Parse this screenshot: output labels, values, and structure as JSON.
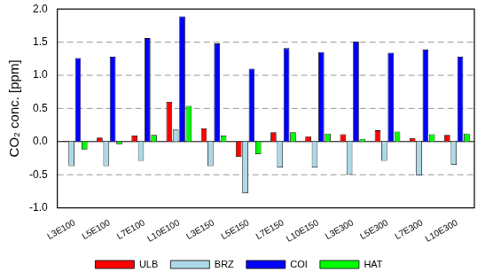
{
  "chart_data": {
    "type": "bar",
    "y_label": "CO₂ conc. [ppm]",
    "categories": [
      "L3E100",
      "L5E100",
      "L7E100",
      "L10E100",
      "L3E150",
      "L5E150",
      "L7E150",
      "L10E150",
      "L3E300",
      "L5E300",
      "L7E300",
      "L10E300"
    ],
    "series": [
      {
        "name": "ULB",
        "color": "#ff0000",
        "values": [
          0.01,
          0.06,
          0.09,
          0.6,
          0.2,
          -0.23,
          0.14,
          0.08,
          0.11,
          0.17,
          0.05,
          0.1
        ]
      },
      {
        "name": "BRZ",
        "color": "#add8e6",
        "values": [
          -0.37,
          -0.37,
          -0.29,
          0.18,
          -0.37,
          -0.78,
          -0.39,
          -0.39,
          -0.5,
          -0.29,
          -0.51,
          -0.35
        ]
      },
      {
        "name": "COI",
        "color": "#0000ff",
        "values": [
          1.26,
          1.28,
          1.56,
          1.89,
          1.48,
          1.1,
          1.41,
          1.35,
          1.51,
          1.34,
          1.39,
          1.28
        ]
      },
      {
        "name": "HAT",
        "color": "#00ff00",
        "values": [
          -0.12,
          -0.04,
          0.1,
          0.54,
          0.09,
          -0.19,
          0.14,
          0.12,
          0.04,
          0.15,
          0.11,
          0.12
        ]
      }
    ],
    "ylim": [
      -1.0,
      2.0
    ],
    "yticks": [
      {
        "value": -1.0,
        "label": "-1.0"
      },
      {
        "value": -0.5,
        "label": "-0.5"
      },
      {
        "value": 0,
        "label": "0.0"
      },
      {
        "value": 0.5,
        "label": "0.5"
      },
      {
        "value": 1.0,
        "label": "1.0"
      },
      {
        "value": 1.5,
        "label": "1.5"
      },
      {
        "value": 2.0,
        "label": "2.0"
      }
    ],
    "grid": true,
    "legend": "bottom"
  }
}
